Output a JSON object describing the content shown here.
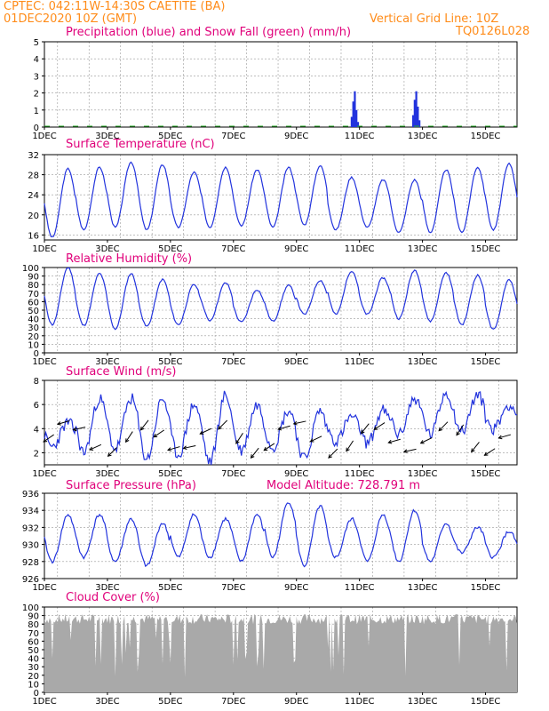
{
  "header": {
    "source_line": "CPTEC:  042:11W-14:30S   CAETITE (BA)",
    "date_line": "01DEC2020 10Z (GMT)",
    "grid_note": "Vertical Grid Line: 10Z",
    "code": "TQ0126L028"
  },
  "colors": {
    "header": "#ff8c1a",
    "title": "#e0007a",
    "series": "#2233dd",
    "snow": "#22aa22",
    "cloud": "#a9a9a9",
    "wind_arrow": "#000000"
  },
  "x_ticks": [
    "1DEC",
    "3DEC",
    "5DEC",
    "7DEC",
    "9DEC",
    "11DEC",
    "13DEC",
    "15DEC"
  ],
  "chart_data": [
    {
      "type": "bar",
      "title": "Precipitation (blue) and Snow Fall (green) (mm/h)",
      "ylim": [
        0,
        5
      ],
      "yticks": [
        0,
        1,
        2,
        3,
        4,
        5
      ],
      "series": [
        {
          "name": "Precipitation",
          "peaks": [
            [
              9.75,
              0.6
            ],
            [
              9.8,
              1.5
            ],
            [
              9.85,
              2.1
            ],
            [
              9.9,
              1.0
            ],
            [
              9.95,
              0.3
            ],
            [
              11.7,
              0.7
            ],
            [
              11.75,
              1.6
            ],
            [
              11.8,
              2.1
            ],
            [
              11.85,
              1.2
            ],
            [
              11.9,
              0.4
            ]
          ]
        },
        {
          "name": "Snow Fall",
          "values": []
        }
      ]
    },
    {
      "type": "line",
      "title": "Surface Temperature (nC)",
      "ylim": [
        15,
        32
      ],
      "yticks": [
        16,
        20,
        24,
        28,
        32
      ],
      "daily_max": [
        29.2,
        29.5,
        30.5,
        30.0,
        28.5,
        29.5,
        29.0,
        29.5,
        29.8,
        27.5,
        27.0,
        27.0,
        29.0,
        29.5,
        30.2
      ],
      "daily_min": [
        15.5,
        17.0,
        17.5,
        17.0,
        17.5,
        17.5,
        17.8,
        17.5,
        18.0,
        17.0,
        17.5,
        16.5,
        16.5,
        16.5,
        17.0
      ]
    },
    {
      "type": "line",
      "title": "Relative Humidity (%)",
      "ylim": [
        0,
        100
      ],
      "yticks": [
        0,
        10,
        20,
        30,
        40,
        50,
        60,
        70,
        80,
        90,
        100
      ],
      "daily_max": [
        100,
        93,
        93,
        86,
        80,
        82,
        74,
        79,
        85,
        96,
        88,
        97,
        94,
        91,
        86
      ],
      "daily_min": [
        33,
        32,
        28,
        31,
        33,
        38,
        36,
        37,
        45,
        45,
        45,
        40,
        37,
        33,
        27
      ]
    },
    {
      "type": "line",
      "title": "Surface Wind (m/s)",
      "ylim": [
        1,
        8
      ],
      "yticks": [
        2,
        4,
        6,
        8
      ],
      "daily_max": [
        4.5,
        6.5,
        6.5,
        6.5,
        6.0,
        6.8,
        6.0,
        5.5,
        5.5,
        5.0,
        5.5,
        6.5,
        7.0,
        6.8,
        6.0
      ],
      "daily_min": [
        2.5,
        2.0,
        2.3,
        1.5,
        1.8,
        1.2,
        2.2,
        2.5,
        1.5,
        3.0,
        2.8,
        3.5,
        3.5,
        3.8,
        4.0
      ]
    },
    {
      "type": "line",
      "title": "Surface Pressure (hPa)",
      "annotation": "Model Altitude: 728.791 m",
      "ylim": [
        926,
        936
      ],
      "yticks": [
        926,
        928,
        930,
        932,
        934,
        936
      ],
      "daily_max": [
        933.5,
        933.5,
        933.0,
        932.5,
        933.5,
        933.0,
        933.5,
        935.0,
        934.5,
        933.0,
        933.5,
        934.0,
        932.5,
        932.0,
        931.5
      ],
      "daily_min": [
        928.0,
        928.5,
        928.0,
        927.5,
        928.5,
        928.5,
        928.0,
        928.5,
        927.5,
        928.5,
        928.0,
        928.0,
        928.0,
        929.0,
        928.5
      ]
    },
    {
      "type": "area",
      "title": "Cloud Cover (%)",
      "ylim": [
        0,
        100
      ],
      "yticks": [
        0,
        10,
        20,
        30,
        40,
        50,
        60,
        70,
        80,
        90,
        100
      ],
      "typical_range": [
        80,
        92
      ]
    }
  ]
}
